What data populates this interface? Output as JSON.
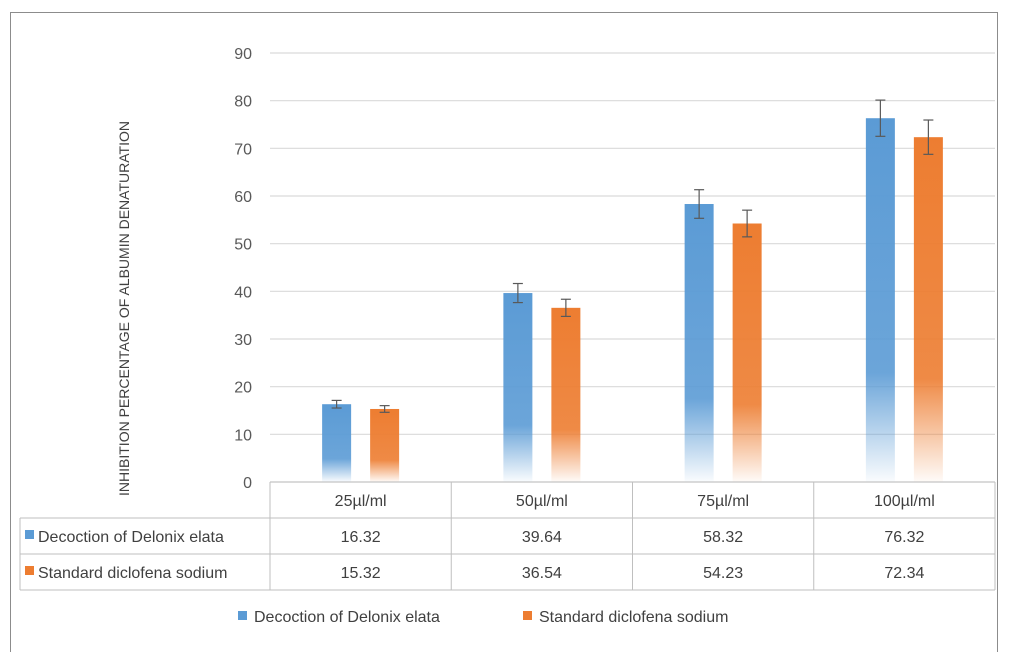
{
  "chart_data": {
    "type": "bar",
    "title": "",
    "xlabel": "",
    "ylabel": "INHIBITION PERCENTAGE OF ALBUMIN DENATURATION",
    "ylim": [
      0,
      90
    ],
    "yticks": [
      0,
      10,
      20,
      30,
      40,
      50,
      60,
      70,
      80,
      90
    ],
    "grid": true,
    "legend_position": "bottom",
    "data_table": true,
    "error_bars": true,
    "categories": [
      "25µl/ml",
      "50µl/ml",
      "75µl/ml",
      "100µl/ml"
    ],
    "series": [
      {
        "name": "Decoction of Delonix elata",
        "values": [
          16.32,
          39.64,
          58.32,
          76.32
        ],
        "value_labels": [
          "16.32",
          "39.64",
          "58.32",
          "76.32"
        ],
        "errors": [
          0.8,
          2.0,
          3.0,
          3.8
        ],
        "color": "#5b9bd5"
      },
      {
        "name": "Standard diclofena sodium",
        "values": [
          15.32,
          36.54,
          54.23,
          72.34
        ],
        "value_labels": [
          "15.32",
          "36.54",
          "54.23",
          "72.34"
        ],
        "errors": [
          0.7,
          1.8,
          2.8,
          3.6
        ],
        "color": "#ed7d31"
      }
    ]
  }
}
